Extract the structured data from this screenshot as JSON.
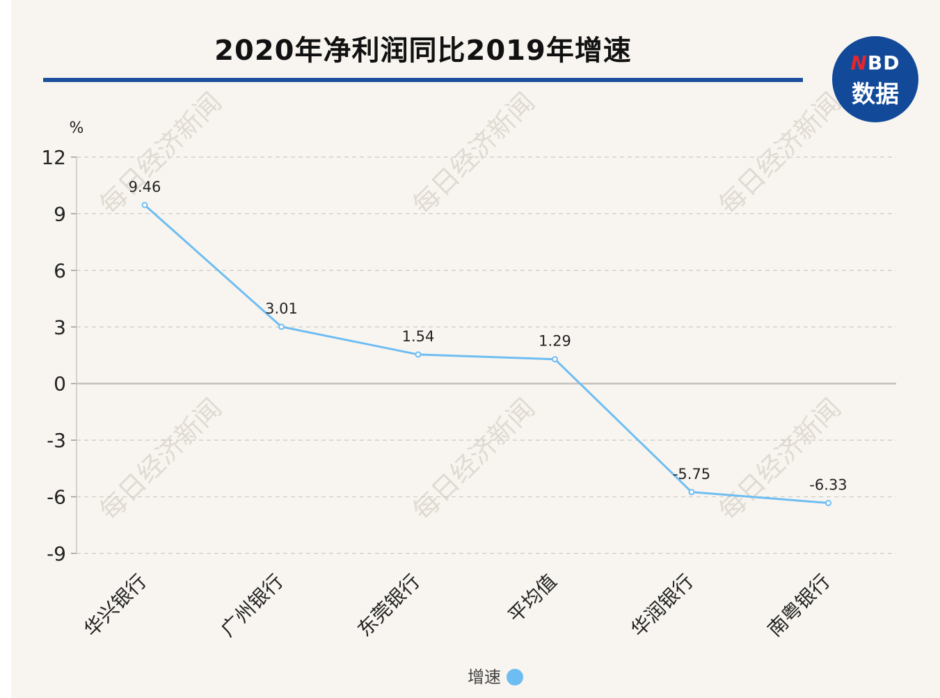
{
  "logo": {
    "line1_accent": "N",
    "line1_rest": "BD",
    "line2": "数据"
  },
  "watermark": "每日经济新闻",
  "legend": {
    "label": "增速"
  },
  "colors": {
    "line": "#6ebdf2",
    "title_rule": "#1d4f9c",
    "logo": "#124a99",
    "background": "#f8f5f0"
  },
  "chart_data": {
    "type": "line",
    "title": "2020年净利润同比2019年增速",
    "ylabel": "%",
    "xlabel": "",
    "ylim": [
      -9,
      12
    ],
    "yticks": [
      12,
      9,
      6,
      3,
      0,
      -3,
      -6,
      -9
    ],
    "categories": [
      "华兴银行",
      "广州银行",
      "东莞银行",
      "平均值",
      "华润银行",
      "南粤银行"
    ],
    "series": [
      {
        "name": "增速",
        "values": [
          9.46,
          3.01,
          1.54,
          1.29,
          -5.75,
          -6.33
        ]
      }
    ],
    "grid": true,
    "legend_position": "bottom"
  }
}
